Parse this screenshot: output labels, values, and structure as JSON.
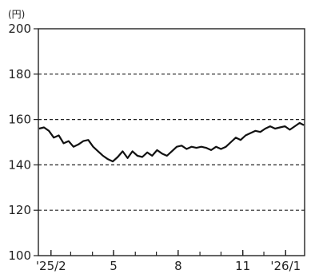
{
  "chart_data": {
    "type": "line",
    "title": "",
    "unit_label": "(円)",
    "xlabel": "",
    "ylabel": "",
    "ylim": [
      100,
      200
    ],
    "y_ticks": [
      "200",
      "180",
      "160",
      "140",
      "120",
      "100"
    ],
    "x_tick_labels": [
      "'25/2",
      "5",
      "8",
      "11",
      "'26/1"
    ],
    "x_tick_months": [
      "2025-02",
      "2025-05",
      "2025-08",
      "2025-11",
      "2026-01"
    ],
    "xlim": [
      "2025-01-14",
      "2026-01-28"
    ],
    "grid": "dashed horizontal at 120, 140, 160, 180",
    "colors": {
      "line": "#111111",
      "grid": "#222222",
      "axis": "#222222"
    },
    "series": [
      {
        "name": "",
        "x": [
          "2025-01-15",
          "2025-01-22",
          "2025-01-29",
          "2025-02-05",
          "2025-02-12",
          "2025-02-19",
          "2025-02-26",
          "2025-03-05",
          "2025-03-12",
          "2025-03-19",
          "2025-03-26",
          "2025-04-02",
          "2025-04-09",
          "2025-04-16",
          "2025-04-23",
          "2025-04-30",
          "2025-05-07",
          "2025-05-14",
          "2025-05-21",
          "2025-05-28",
          "2025-06-04",
          "2025-06-11",
          "2025-06-18",
          "2025-06-25",
          "2025-07-02",
          "2025-07-09",
          "2025-07-16",
          "2025-07-23",
          "2025-07-30",
          "2025-08-06",
          "2025-08-13",
          "2025-08-20",
          "2025-08-27",
          "2025-09-03",
          "2025-09-10",
          "2025-09-17",
          "2025-09-24",
          "2025-10-01",
          "2025-10-08",
          "2025-10-15",
          "2025-10-22",
          "2025-10-29",
          "2025-11-05",
          "2025-11-12",
          "2025-11-19",
          "2025-11-26",
          "2025-12-03",
          "2025-12-10",
          "2025-12-17",
          "2025-12-24",
          "2025-12-31",
          "2026-01-07",
          "2026-01-14",
          "2026-01-21",
          "2026-01-27"
        ],
        "values": [
          156,
          156.5,
          155,
          152,
          153,
          149.5,
          150.5,
          148,
          149,
          150.5,
          151,
          148,
          146,
          144,
          142.5,
          141.5,
          143.5,
          146,
          143,
          146,
          144,
          143.5,
          145.5,
          144,
          146.5,
          145,
          144,
          146,
          148,
          148.5,
          147,
          148,
          147.5,
          148,
          147.5,
          146.5,
          148,
          147,
          148,
          150,
          152,
          151,
          153,
          154,
          155,
          154.5,
          156,
          157,
          156,
          156.5,
          157,
          155.5,
          157,
          158.5,
          157.5
        ]
      }
    ]
  }
}
